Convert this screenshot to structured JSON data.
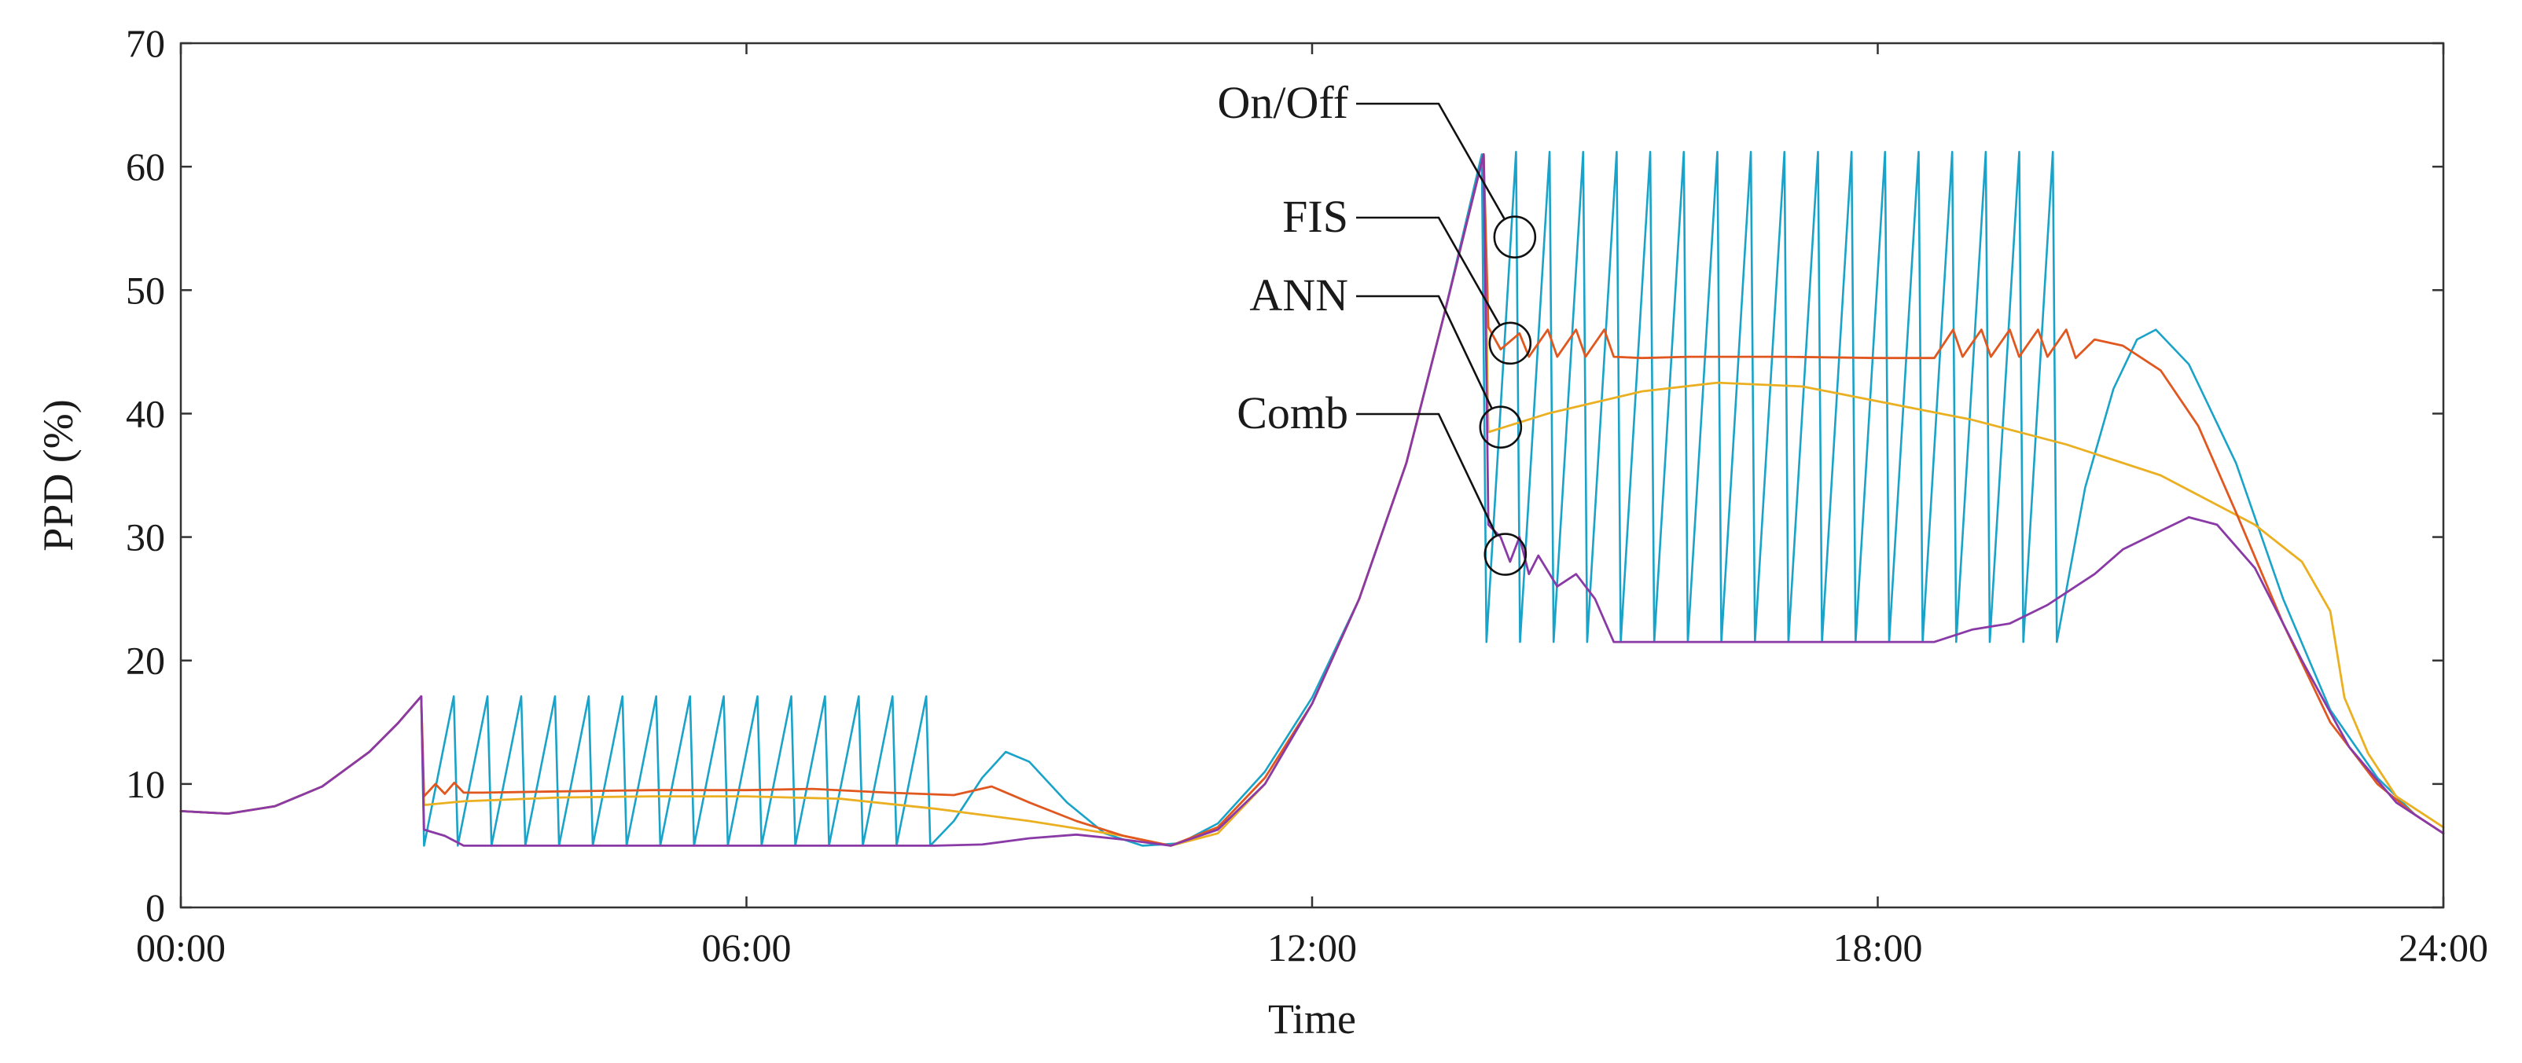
{
  "chart_data": {
    "type": "line",
    "title": "",
    "xlabel": "Time",
    "ylabel": "PPD (%)",
    "x_unit": "hours",
    "xlim": [
      0,
      24
    ],
    "ylim": [
      0,
      70
    ],
    "grid": false,
    "x_ticks": [
      {
        "value": 0,
        "label": "00:00"
      },
      {
        "value": 6,
        "label": "06:00"
      },
      {
        "value": 12,
        "label": "12:00"
      },
      {
        "value": 18,
        "label": "18:00"
      },
      {
        "value": 24,
        "label": "24:00"
      }
    ],
    "y_ticks": [
      {
        "value": 0,
        "label": "0"
      },
      {
        "value": 10,
        "label": "10"
      },
      {
        "value": 20,
        "label": "20"
      },
      {
        "value": 30,
        "label": "30"
      },
      {
        "value": 40,
        "label": "40"
      },
      {
        "value": 50,
        "label": "50"
      },
      {
        "value": 60,
        "label": "60"
      },
      {
        "value": 70,
        "label": "70"
      }
    ],
    "series": [
      {
        "name": "On/Off",
        "color": "#1aa3c9",
        "base": [
          [
            0,
            7.8
          ],
          [
            0.5,
            7.6
          ],
          [
            1,
            8.2
          ],
          [
            1.5,
            9.8
          ],
          [
            2,
            12.6
          ],
          [
            2.3,
            14.9
          ],
          [
            2.55,
            17.1
          ]
        ],
        "sawtooth": [
          {
            "x0": 2.58,
            "x1": 7.95,
            "low": 5.0,
            "high": 17.1,
            "cycles": 15
          },
          {
            "x0": 13.85,
            "x1": 19.9,
            "low": 21.5,
            "high": 61.2,
            "cycles": 17
          }
        ],
        "tail": [
          [
            7.95,
            5.0
          ],
          [
            8.2,
            7.0
          ],
          [
            8.5,
            10.5
          ],
          [
            8.75,
            12.6
          ],
          [
            9.0,
            11.8
          ],
          [
            9.4,
            8.5
          ],
          [
            9.8,
            6.0
          ],
          [
            10.2,
            5.0
          ],
          [
            10.6,
            5.2
          ],
          [
            11.0,
            6.8
          ],
          [
            11.5,
            11.0
          ],
          [
            12.0,
            17.0
          ],
          [
            12.5,
            25.0
          ],
          [
            13.0,
            36.0
          ],
          [
            13.4,
            48.0
          ],
          [
            13.8,
            61.0
          ],
          [
            13.85,
            21.5
          ]
        ],
        "tail2": [
          [
            19.9,
            21.5
          ],
          [
            20.2,
            34.0
          ],
          [
            20.5,
            42.0
          ],
          [
            20.75,
            46.0
          ],
          [
            20.95,
            46.8
          ],
          [
            21.3,
            44.0
          ],
          [
            21.8,
            36.0
          ],
          [
            22.3,
            25.0
          ],
          [
            22.8,
            16.0
          ],
          [
            23.3,
            10.5
          ],
          [
            23.7,
            7.5
          ],
          [
            24.0,
            6.0
          ]
        ]
      },
      {
        "name": "FIS",
        "color": "#e0571f",
        "points": [
          [
            0,
            7.8
          ],
          [
            0.5,
            7.6
          ],
          [
            1,
            8.2
          ],
          [
            1.5,
            9.8
          ],
          [
            2,
            12.6
          ],
          [
            2.3,
            14.9
          ],
          [
            2.55,
            17.1
          ],
          [
            2.58,
            9.0
          ],
          [
            2.7,
            10.0
          ],
          [
            2.8,
            9.2
          ],
          [
            2.9,
            10.1
          ],
          [
            3.0,
            9.3
          ],
          [
            3.2,
            9.3
          ],
          [
            4.0,
            9.4
          ],
          [
            5.0,
            9.5
          ],
          [
            6.0,
            9.5
          ],
          [
            6.7,
            9.6
          ],
          [
            7.5,
            9.3
          ],
          [
            8.2,
            9.1
          ],
          [
            8.6,
            9.8
          ],
          [
            9.0,
            8.5
          ],
          [
            9.5,
            7.0
          ],
          [
            10.0,
            5.8
          ],
          [
            10.5,
            5.0
          ],
          [
            11.0,
            6.5
          ],
          [
            11.5,
            10.5
          ],
          [
            12.0,
            16.5
          ],
          [
            12.5,
            25.0
          ],
          [
            13.0,
            36.0
          ],
          [
            13.4,
            48.0
          ],
          [
            13.82,
            61.0
          ],
          [
            13.87,
            47.0
          ],
          [
            14.0,
            45.2
          ],
          [
            14.2,
            46.5
          ],
          [
            14.3,
            44.6
          ],
          [
            14.5,
            46.8
          ],
          [
            14.6,
            44.6
          ],
          [
            14.8,
            46.8
          ],
          [
            14.9,
            44.6
          ],
          [
            15.1,
            46.8
          ],
          [
            15.2,
            44.6
          ],
          [
            15.5,
            44.5
          ],
          [
            16.0,
            44.6
          ],
          [
            17.0,
            44.6
          ],
          [
            18.0,
            44.5
          ],
          [
            18.6,
            44.5
          ],
          [
            18.8,
            46.8
          ],
          [
            18.9,
            44.6
          ],
          [
            19.1,
            46.8
          ],
          [
            19.2,
            44.6
          ],
          [
            19.4,
            46.8
          ],
          [
            19.5,
            44.6
          ],
          [
            19.7,
            46.8
          ],
          [
            19.8,
            44.6
          ],
          [
            20.0,
            46.8
          ],
          [
            20.1,
            44.5
          ],
          [
            20.3,
            46.0
          ],
          [
            20.6,
            45.5
          ],
          [
            21.0,
            43.5
          ],
          [
            21.4,
            39.0
          ],
          [
            21.8,
            32.0
          ],
          [
            22.3,
            23.0
          ],
          [
            22.8,
            15.0
          ],
          [
            23.3,
            10.0
          ],
          [
            23.7,
            7.5
          ],
          [
            24.0,
            6.0
          ]
        ]
      },
      {
        "name": "ANN",
        "color": "#eab021",
        "points": [
          [
            0,
            7.8
          ],
          [
            0.5,
            7.6
          ],
          [
            1,
            8.2
          ],
          [
            1.5,
            9.8
          ],
          [
            2,
            12.6
          ],
          [
            2.3,
            14.9
          ],
          [
            2.55,
            17.1
          ],
          [
            2.58,
            8.3
          ],
          [
            3.0,
            8.6
          ],
          [
            4.0,
            8.9
          ],
          [
            5.0,
            9.0
          ],
          [
            6.0,
            9.0
          ],
          [
            7.0,
            8.8
          ],
          [
            8.0,
            8.0
          ],
          [
            9.0,
            7.0
          ],
          [
            10.0,
            5.8
          ],
          [
            10.5,
            5.0
          ],
          [
            11.0,
            6.0
          ],
          [
            11.5,
            10.0
          ],
          [
            12.0,
            16.5
          ],
          [
            12.5,
            25.0
          ],
          [
            13.0,
            36.0
          ],
          [
            13.4,
            48.0
          ],
          [
            13.82,
            61.0
          ],
          [
            13.87,
            38.5
          ],
          [
            14.5,
            40.0
          ],
          [
            15.5,
            41.8
          ],
          [
            16.3,
            42.5
          ],
          [
            17.2,
            42.2
          ],
          [
            18.0,
            41.0
          ],
          [
            19.0,
            39.5
          ],
          [
            20.0,
            37.5
          ],
          [
            21.0,
            35.0
          ],
          [
            22.0,
            31.0
          ],
          [
            22.5,
            28.0
          ],
          [
            22.8,
            24.0
          ],
          [
            22.95,
            17.0
          ],
          [
            23.2,
            12.5
          ],
          [
            23.5,
            9.0
          ],
          [
            24.0,
            6.5
          ]
        ]
      },
      {
        "name": "Comb",
        "color": "#8a3aa6",
        "points": [
          [
            0,
            7.8
          ],
          [
            0.5,
            7.6
          ],
          [
            1,
            8.2
          ],
          [
            1.5,
            9.8
          ],
          [
            2,
            12.6
          ],
          [
            2.3,
            14.9
          ],
          [
            2.55,
            17.1
          ],
          [
            2.58,
            6.3
          ],
          [
            2.8,
            5.8
          ],
          [
            3.0,
            5.0
          ],
          [
            4.0,
            5.0
          ],
          [
            5.0,
            5.0
          ],
          [
            6.0,
            5.0
          ],
          [
            7.0,
            5.0
          ],
          [
            8.0,
            5.0
          ],
          [
            8.5,
            5.1
          ],
          [
            9.0,
            5.6
          ],
          [
            9.5,
            5.9
          ],
          [
            10.0,
            5.5
          ],
          [
            10.5,
            5.0
          ],
          [
            11.0,
            6.3
          ],
          [
            11.5,
            10.0
          ],
          [
            12.0,
            16.5
          ],
          [
            12.5,
            25.0
          ],
          [
            13.0,
            36.0
          ],
          [
            13.4,
            48.0
          ],
          [
            13.82,
            61.0
          ],
          [
            13.87,
            31.0
          ],
          [
            14.0,
            30.0
          ],
          [
            14.1,
            28.0
          ],
          [
            14.2,
            30.0
          ],
          [
            14.3,
            27.0
          ],
          [
            14.4,
            28.5
          ],
          [
            14.6,
            26.0
          ],
          [
            14.8,
            27.0
          ],
          [
            15.0,
            25.0
          ],
          [
            15.2,
            21.5
          ],
          [
            15.8,
            21.5
          ],
          [
            17.0,
            21.5
          ],
          [
            18.0,
            21.5
          ],
          [
            18.6,
            21.5
          ],
          [
            19.0,
            22.5
          ],
          [
            19.4,
            23.0
          ],
          [
            19.8,
            24.5
          ],
          [
            20.0,
            25.5
          ],
          [
            20.3,
            27.0
          ],
          [
            20.6,
            29.0
          ],
          [
            21.0,
            30.5
          ],
          [
            21.3,
            31.6
          ],
          [
            21.6,
            31.0
          ],
          [
            22.0,
            27.5
          ],
          [
            22.5,
            20.0
          ],
          [
            23.0,
            13.0
          ],
          [
            23.5,
            8.5
          ],
          [
            24.0,
            6.0
          ]
        ]
      }
    ],
    "annotations": [
      {
        "label": "On/Off",
        "target_x": 14.15,
        "target_y": 54.3
      },
      {
        "label": "FIS",
        "target_x": 14.1,
        "target_y": 45.7
      },
      {
        "label": "ANN",
        "target_x": 14.0,
        "target_y": 38.9
      },
      {
        "label": "Comb",
        "target_x": 14.05,
        "target_y": 28.6
      }
    ]
  }
}
